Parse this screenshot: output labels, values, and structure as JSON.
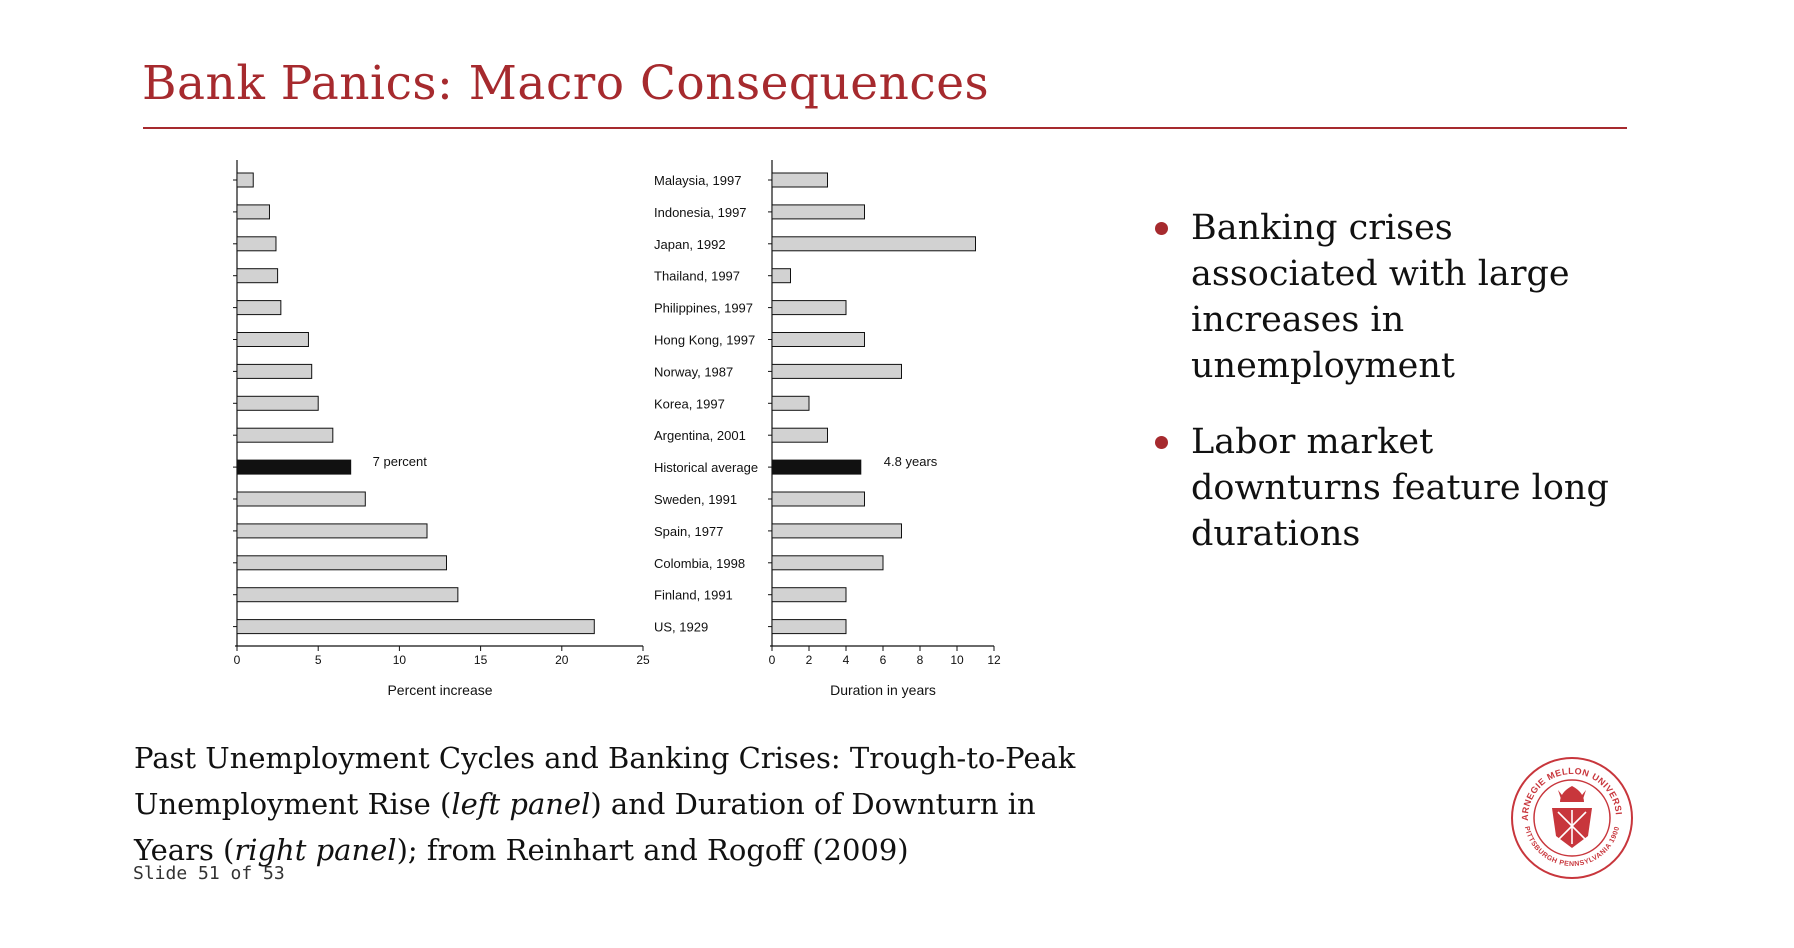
{
  "slide": {
    "title": "Bank Panics: Macro Consequences",
    "bullets": [
      "Banking crises associated with large increases in unemployment",
      "Labor market downturns feature long durations"
    ],
    "caption": {
      "part1": "Past Unemployment Cycles and Banking Crises: Trough-to-Peak Unemployment Rise (",
      "left_panel": "left panel",
      "part2": ") and Duration of Downturn in Years (",
      "right_panel": "right panel",
      "part3": "); from Reinhart and Rogoff (2009)"
    },
    "slide_number": "Slide 51 of 53",
    "logo": {
      "ring_top": "CARNEGIE MELLON UNIVERSITY",
      "ring_bottom": "PITTSBURGH PENNSYLVANIA 1900",
      "color": "#c8363c"
    },
    "accent_color": "#a62a2e"
  },
  "chart_data": [
    {
      "type": "bar",
      "orientation": "horizontal",
      "categories": [
        "Malaysia, 1997",
        "Indonesia, 1997",
        "Japan, 1992",
        "Thailand, 1997",
        "Philippines, 1997",
        "Hong Kong, 1997",
        "Norway, 1987",
        "Korea, 1997",
        "Argentina, 2001",
        "Historical average",
        "Sweden, 1991",
        "Spain, 1977",
        "Colombia, 1998",
        "Finland, 1991",
        "US, 1929"
      ],
      "values": [
        1.0,
        2.0,
        2.4,
        2.5,
        2.7,
        4.4,
        4.6,
        5.0,
        5.9,
        7.0,
        7.9,
        11.7,
        12.9,
        13.6,
        22.0
      ],
      "highlight_index": 9,
      "highlight_label": "7 percent",
      "xlabel": "Percent increase",
      "xlim": [
        0,
        25
      ],
      "xticks": [
        0,
        5,
        10,
        15,
        20,
        25
      ],
      "colors": {
        "bar": "#d2d2d2",
        "highlight": "#111111"
      }
    },
    {
      "type": "bar",
      "orientation": "horizontal",
      "categories": [
        "Malaysia, 1997",
        "Indonesia, 1997",
        "Japan, 1992",
        "Thailand, 1997",
        "Philippines, 1997",
        "Hong Kong, 1997",
        "Norway, 1987",
        "Korea, 1997",
        "Argentina, 2001",
        "Historical average",
        "Sweden, 1991",
        "Spain, 1977",
        "Colombia, 1998",
        "Finland, 1991",
        "US, 1929"
      ],
      "values": [
        3,
        5,
        11,
        1,
        4,
        5,
        7,
        2,
        3,
        4.8,
        5,
        7,
        6,
        4,
        4
      ],
      "highlight_index": 9,
      "highlight_label": "4.8 years",
      "xlabel": "Duration in years",
      "xlim": [
        0,
        12
      ],
      "xticks": [
        0,
        2,
        4,
        6,
        8,
        10,
        12
      ],
      "colors": {
        "bar": "#d2d2d2",
        "highlight": "#111111"
      }
    }
  ]
}
